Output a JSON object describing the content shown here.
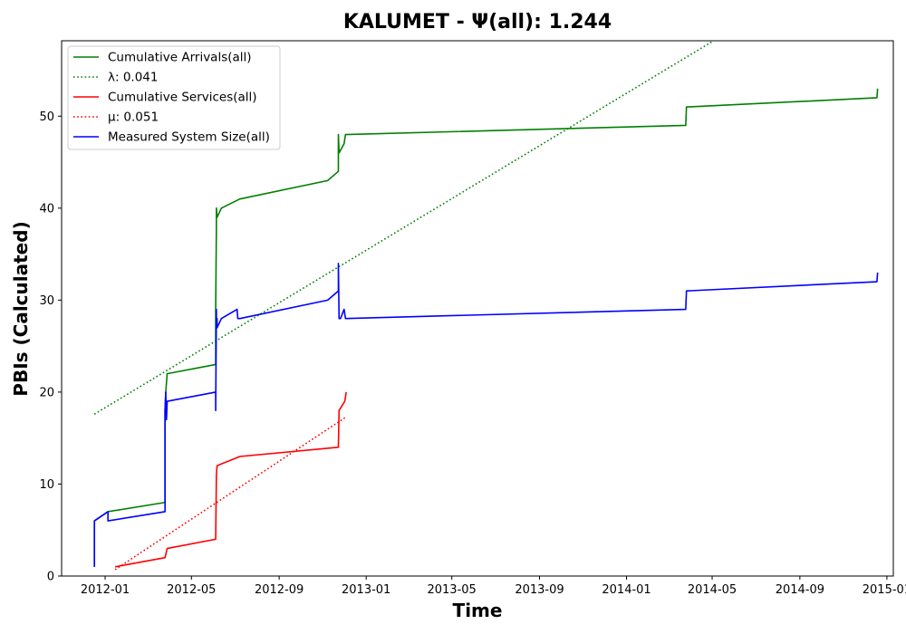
{
  "chart_data": {
    "type": "line",
    "title": "KALUMET -  Ψ(all): 1.244",
    "xlabel": "Time",
    "ylabel": "PBIs (Calculated)",
    "x_is_date": true,
    "xlim": [
      "2011-11-01",
      "2015-01-10"
    ],
    "ylim": [
      0,
      58.2
    ],
    "x_ticks": [
      "2012-01-01",
      "2012-05-01",
      "2012-09-01",
      "2013-01-01",
      "2013-05-01",
      "2013-09-01",
      "2014-01-01",
      "2014-05-01",
      "2014-09-01",
      "2015-01-01"
    ],
    "x_tick_labels": [
      "2012-01",
      "2012-05",
      "2012-09",
      "2013-01",
      "2013-05",
      "2013-09",
      "2014-01",
      "2014-05",
      "2014-09",
      "2015-01"
    ],
    "y_ticks": [
      0,
      10,
      20,
      30,
      40,
      50
    ],
    "y_tick_labels": [
      "0",
      "10",
      "20",
      "30",
      "40",
      "50"
    ],
    "grid": false,
    "legend_position": "top-left",
    "series": [
      {
        "name": "Cumulative Arrivals(all)",
        "color": "#008000",
        "style": "solid",
        "x": [
          "2011-12-17",
          "2011-12-17",
          "2012-01-05",
          "2012-03-25",
          "2012-03-25",
          "2012-03-26",
          "2012-03-27",
          "2012-03-28",
          "2012-06-04",
          "2012-06-04",
          "2012-06-05",
          "2012-06-05",
          "2012-06-06",
          "2012-06-12",
          "2012-07-08",
          "2012-11-08",
          "2012-11-23",
          "2012-11-23",
          "2012-11-24",
          "2012-11-24",
          "2012-12-01",
          "2012-12-03",
          "2014-03-25",
          "2014-03-26",
          "2014-12-18",
          "2014-12-19"
        ],
        "y": [
          1,
          6,
          7,
          8,
          18,
          20,
          21,
          22,
          23,
          29,
          38,
          40,
          39,
          40,
          41,
          43,
          44,
          48,
          46,
          46,
          47,
          48,
          49,
          51,
          52,
          53
        ]
      },
      {
        "name": "λ: 0.041",
        "color": "#008000",
        "style": "dotted",
        "x": [
          "2011-12-17",
          "2014-05-03"
        ],
        "y": [
          17.6,
          58.2
        ]
      },
      {
        "name": "Cumulative Services(all)",
        "color": "#ff0000",
        "style": "solid",
        "x": [
          "2012-01-15",
          "2012-03-25",
          "2012-03-28",
          "2012-06-04",
          "2012-06-05",
          "2012-06-06",
          "2012-07-08",
          "2012-11-23",
          "2012-11-24",
          "2012-12-02",
          "2012-12-04"
        ],
        "y": [
          1,
          2,
          3,
          4,
          11,
          12,
          13,
          14,
          18,
          19,
          20
        ]
      },
      {
        "name": "μ: 0.051",
        "color": "#ff0000",
        "style": "dotted",
        "x": [
          "2012-01-15",
          "2012-12-04"
        ],
        "y": [
          0.7,
          17.3
        ]
      },
      {
        "name": "Measured System Size(all)",
        "color": "#0000ff",
        "style": "solid",
        "x": [
          "2011-12-17",
          "2011-12-17",
          "2012-01-05",
          "2012-01-05",
          "2012-03-25",
          "2012-03-25",
          "2012-03-26",
          "2012-03-27",
          "2012-03-28",
          "2012-06-04",
          "2012-06-04",
          "2012-06-05",
          "2012-06-05",
          "2012-06-06",
          "2012-06-06",
          "2012-06-12",
          "2012-07-04",
          "2012-07-05",
          "2012-07-08",
          "2012-11-08",
          "2012-11-23",
          "2012-11-23",
          "2012-11-24",
          "2012-11-26",
          "2012-12-01",
          "2012-12-03",
          "2014-03-25",
          "2014-03-26",
          "2014-12-18",
          "2014-12-19"
        ],
        "y": [
          1,
          6,
          7,
          6,
          7,
          18,
          20,
          17,
          19,
          20,
          18,
          29,
          27,
          28,
          27,
          28,
          29,
          28,
          28,
          30,
          31,
          34,
          28,
          28,
          29,
          28,
          29,
          31,
          32,
          33
        ]
      }
    ]
  }
}
